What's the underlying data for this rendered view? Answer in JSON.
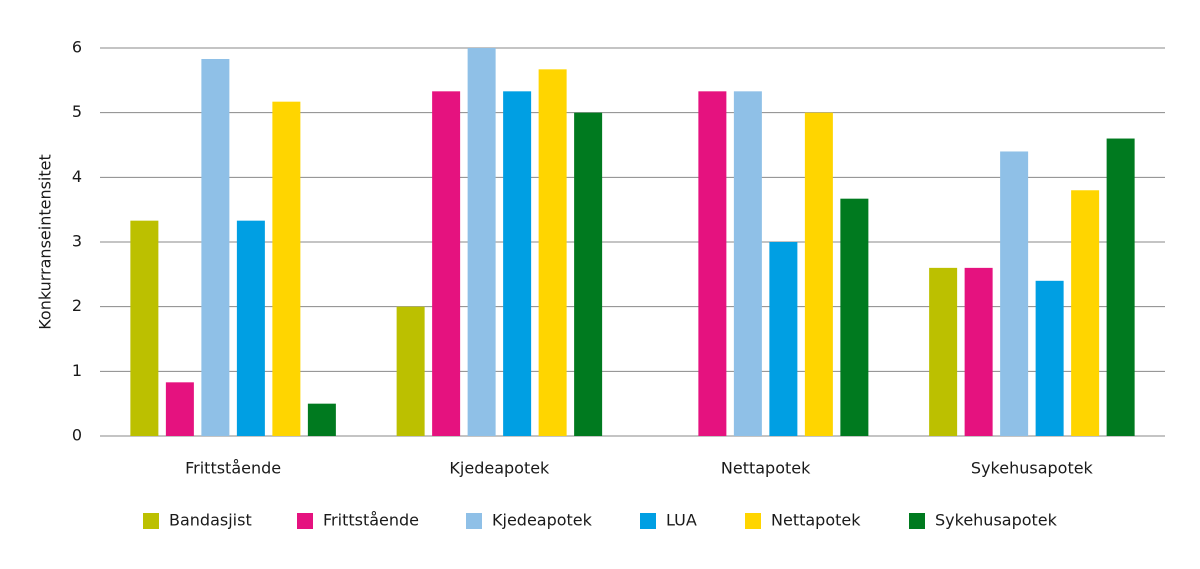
{
  "chart_data": {
    "type": "bar",
    "y_label": "Konkurranseintensitet",
    "categories": [
      "Frittstående",
      "Kjedeapotek",
      "Nettapotek",
      "Sykehusapotek"
    ],
    "series": [
      {
        "name": "Bandasjist",
        "color": "#bcc000",
        "values": [
          3.33,
          2.0,
          null,
          2.6
        ]
      },
      {
        "name": "Frittstående",
        "color": "#e5127f",
        "values": [
          0.83,
          5.33,
          5.33,
          2.6
        ]
      },
      {
        "name": "Kjedeapotek",
        "color": "#8fc0e7",
        "values": [
          5.83,
          6.0,
          5.33,
          4.4
        ]
      },
      {
        "name": "LUA",
        "color": "#009fe3",
        "values": [
          3.33,
          5.33,
          3.0,
          2.4
        ]
      },
      {
        "name": "Nettapotek",
        "color": "#ffd500",
        "values": [
          5.17,
          5.67,
          5.0,
          3.8
        ]
      },
      {
        "name": "Sykehusapotek",
        "color": "#007a1f",
        "values": [
          0.5,
          5.0,
          3.67,
          4.6
        ]
      }
    ],
    "ylim": [
      0,
      6
    ],
    "yticks": [
      0,
      1,
      2,
      3,
      4,
      5,
      6
    ],
    "grid": true,
    "legend": "bottom"
  }
}
